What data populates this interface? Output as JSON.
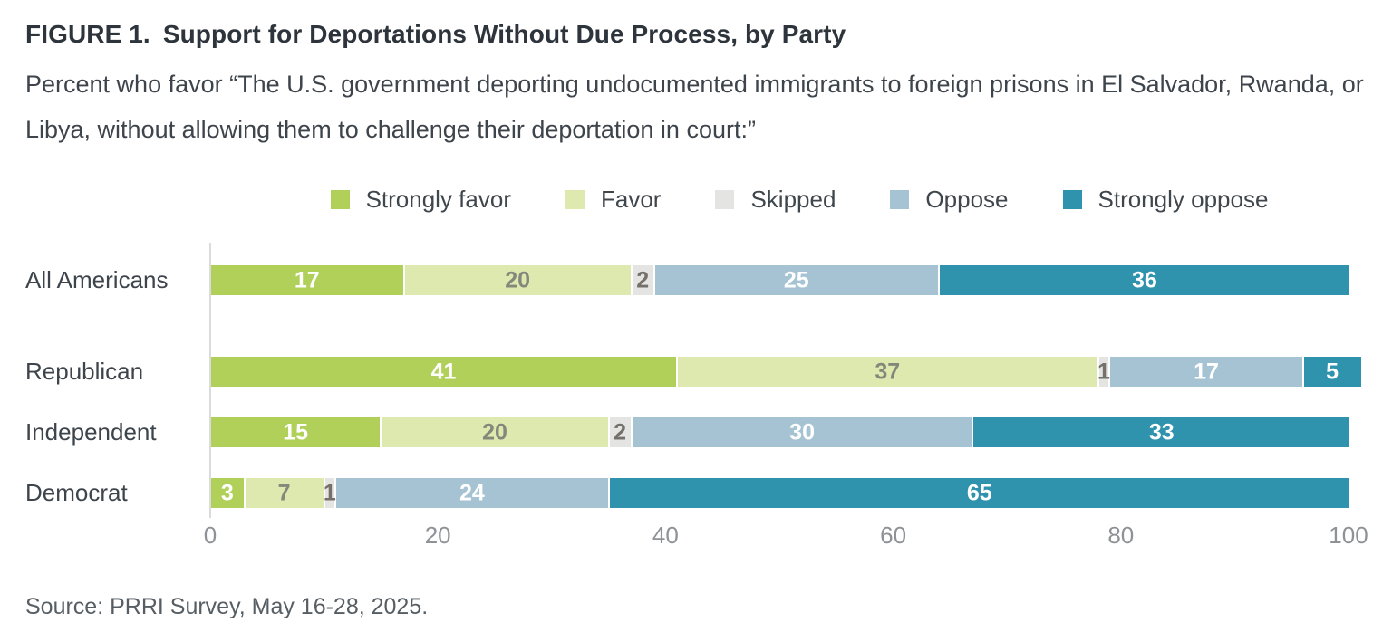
{
  "header": {
    "figure_label": "FIGURE 1.",
    "title": "Support for Deportations Without Due Process, by Party",
    "subtitle": "Percent who favor “The U.S. government deporting undocumented immigrants to foreign prisons in El Salvador, Rwanda, or Libya, without allowing them to challenge their deportation in court:”"
  },
  "footer": {
    "source": "Source: PRRI Survey, May 16-28, 2025."
  },
  "chart_data": {
    "type": "bar",
    "orientation": "horizontal-stacked",
    "title": "Support for Deportations Without Due Process, by Party",
    "categories": [
      "All Americans",
      "Republican",
      "Independent",
      "Democrat"
    ],
    "series": [
      {
        "name": "Strongly favor",
        "values": [
          17,
          41,
          15,
          3
        ],
        "color": "#b1d05a",
        "label_color": "#ffffff"
      },
      {
        "name": "Favor",
        "values": [
          20,
          37,
          20,
          7
        ],
        "color": "#dde9ae",
        "label_color": "#84887b"
      },
      {
        "name": "Skipped",
        "values": [
          2,
          1,
          2,
          1
        ],
        "color": "#e4e4e3",
        "label_color": "#75716a"
      },
      {
        "name": "Oppose",
        "values": [
          25,
          17,
          30,
          24
        ],
        "color": "#a5c3d3",
        "label_color": "#ffffff"
      },
      {
        "name": "Strongly oppose",
        "values": [
          36,
          5,
          33,
          65
        ],
        "color": "#3093ae",
        "label_color": "#ffffff"
      }
    ],
    "x_ticks": [
      0,
      20,
      40,
      60,
      80,
      100
    ],
    "xlim": [
      0,
      100
    ],
    "xlabel": "",
    "ylabel": "",
    "legend_position": "top",
    "grid": false
  }
}
